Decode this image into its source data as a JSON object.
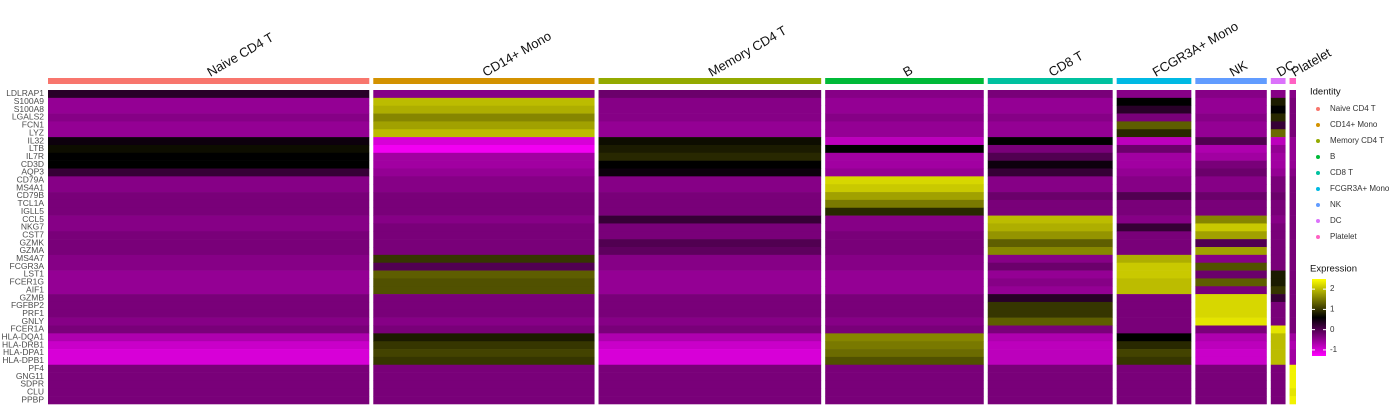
{
  "chart_data": {
    "type": "heatmap",
    "genes": [
      "LDLRAP1",
      "S100A9",
      "S100A8",
      "LGALS2",
      "FCN1",
      "LYZ",
      "IL32",
      "LTB",
      "IL7R",
      "CD3D",
      "AQP3",
      "CD79A",
      "MS4A1",
      "CD79B",
      "TCL1A",
      "IGLL5",
      "CCL5",
      "NKG7",
      "CST7",
      "GZMK",
      "GZMA",
      "MS4A7",
      "FCGR3A",
      "LST1",
      "FCER1G",
      "AIF1",
      "GZMB",
      "FGFBP2",
      "PRF1",
      "GNLY",
      "FCER1A",
      "HLA-DQA1",
      "HLA-DRB1",
      "HLA-DPA1",
      "HLA-DPB1",
      "PF4",
      "GNG11",
      "SDPR",
      "CLU",
      "PPBP"
    ],
    "clusters": [
      {
        "name": "Naive CD4 T",
        "color": "#F8766D",
        "cells": 697
      },
      {
        "name": "CD14+ Mono",
        "color": "#D39200",
        "cells": 480
      },
      {
        "name": "Memory CD4 T",
        "color": "#93AA00",
        "cells": 483
      },
      {
        "name": "B",
        "color": "#00BA38",
        "cells": 344
      },
      {
        "name": "CD8 T",
        "color": "#00C19F",
        "cells": 271
      },
      {
        "name": "FCGR3A+ Mono",
        "color": "#00B9E3",
        "cells": 162
      },
      {
        "name": "NK",
        "color": "#619CFF",
        "cells": 155
      },
      {
        "name": "DC",
        "color": "#DB72FB",
        "cells": 32
      },
      {
        "name": "Platelet",
        "color": "#FF61C3",
        "cells": 14
      }
    ],
    "values": [
      [
        0.3,
        -0.4,
        -0.2,
        -0.4,
        -0.3,
        -0.4,
        -0.4,
        -0.4,
        -0.4
      ],
      [
        -0.5,
        2.0,
        -0.4,
        -0.5,
        -0.5,
        0.6,
        -0.5,
        0.8,
        -0.3
      ],
      [
        -0.5,
        1.9,
        -0.4,
        -0.5,
        -0.5,
        0.3,
        -0.5,
        0.6,
        -0.3
      ],
      [
        -0.4,
        1.6,
        -0.4,
        -0.4,
        -0.4,
        -0.3,
        -0.4,
        0.9,
        -0.3
      ],
      [
        -0.5,
        1.8,
        -0.5,
        -0.5,
        -0.5,
        1.3,
        -0.5,
        0.2,
        -0.3
      ],
      [
        -0.5,
        2.0,
        -0.5,
        -0.5,
        -0.5,
        0.9,
        -0.5,
        1.4,
        -0.3
      ],
      [
        0.5,
        -1.0,
        0.7,
        -0.8,
        0.6,
        -0.8,
        0.0,
        -0.8,
        -0.5
      ],
      [
        0.7,
        -1.2,
        0.8,
        0.6,
        -0.3,
        -0.2,
        -0.7,
        -0.5,
        -0.5
      ],
      [
        0.6,
        -0.6,
        0.9,
        -0.6,
        0.0,
        -0.6,
        -0.6,
        -0.6,
        -0.5
      ],
      [
        0.6,
        -0.6,
        0.6,
        -0.6,
        0.5,
        -0.6,
        -0.3,
        -0.6,
        -0.5
      ],
      [
        0.2,
        -0.5,
        0.5,
        -0.5,
        0.2,
        -0.5,
        -0.2,
        -0.5,
        -0.4
      ],
      [
        -0.4,
        -0.4,
        -0.4,
        2.2,
        -0.4,
        -0.4,
        -0.4,
        -0.3,
        -0.3
      ],
      [
        -0.4,
        -0.4,
        -0.4,
        2.1,
        -0.4,
        -0.4,
        -0.4,
        -0.3,
        -0.3
      ],
      [
        -0.3,
        -0.3,
        -0.3,
        1.8,
        -0.2,
        0.0,
        -0.2,
        -0.2,
        -0.3
      ],
      [
        -0.3,
        -0.3,
        -0.3,
        1.5,
        -0.3,
        -0.3,
        -0.3,
        -0.3,
        -0.3
      ],
      [
        -0.3,
        -0.3,
        -0.3,
        0.9,
        -0.3,
        -0.3,
        -0.3,
        -0.3,
        -0.3
      ],
      [
        -0.4,
        -0.4,
        0.2,
        -0.4,
        2.0,
        -0.4,
        1.6,
        -0.4,
        -0.3
      ],
      [
        -0.4,
        -0.3,
        -0.3,
        -0.4,
        1.9,
        0.2,
        2.1,
        -0.3,
        -0.3
      ],
      [
        -0.3,
        -0.3,
        -0.3,
        -0.3,
        1.7,
        -0.3,
        1.8,
        -0.3,
        -0.3
      ],
      [
        -0.3,
        -0.3,
        0.0,
        -0.3,
        1.3,
        -0.3,
        0.0,
        -0.3,
        -0.3
      ],
      [
        -0.3,
        -0.3,
        -0.1,
        -0.3,
        1.6,
        -0.3,
        1.8,
        -0.3,
        -0.3
      ],
      [
        -0.4,
        1.0,
        -0.4,
        -0.4,
        -0.4,
        1.9,
        -0.4,
        -0.3,
        -0.3
      ],
      [
        -0.4,
        0.0,
        -0.4,
        -0.4,
        -0.2,
        2.1,
        1.2,
        -0.3,
        -0.3
      ],
      [
        -0.5,
        1.3,
        -0.5,
        -0.5,
        -0.5,
        2.1,
        -0.2,
        0.8,
        -0.3
      ],
      [
        -0.5,
        1.2,
        -0.5,
        -0.5,
        -0.4,
        2.0,
        1.3,
        0.8,
        -0.3
      ],
      [
        -0.5,
        1.2,
        -0.5,
        -0.5,
        -0.5,
        2.0,
        -0.3,
        1.0,
        -0.3
      ],
      [
        -0.3,
        -0.3,
        -0.3,
        -0.3,
        0.3,
        -0.3,
        2.2,
        0.2,
        -0.3
      ],
      [
        -0.3,
        -0.3,
        -0.3,
        -0.3,
        1.0,
        -0.3,
        2.2,
        -0.3,
        -0.3
      ],
      [
        -0.3,
        -0.3,
        -0.3,
        -0.3,
        1.0,
        -0.3,
        2.2,
        -0.3,
        -0.3
      ],
      [
        -0.4,
        -0.4,
        -0.4,
        -0.4,
        1.3,
        -0.3,
        2.3,
        -0.3,
        -0.3
      ],
      [
        -0.3,
        -0.3,
        -0.3,
        -0.3,
        -0.3,
        -0.3,
        -0.3,
        2.3,
        -0.3
      ],
      [
        -0.7,
        0.8,
        -0.7,
        1.6,
        -0.7,
        0.6,
        -0.7,
        2.0,
        -0.6
      ],
      [
        -0.9,
        1.0,
        -0.9,
        1.5,
        -0.8,
        0.9,
        -0.8,
        2.0,
        -0.7
      ],
      [
        -1.0,
        1.1,
        -1.0,
        1.4,
        -0.8,
        1.1,
        -0.9,
        2.0,
        -0.6
      ],
      [
        -1.0,
        1.0,
        -1.0,
        1.2,
        -0.8,
        1.0,
        -0.9,
        2.0,
        -0.6
      ],
      [
        -0.3,
        -0.3,
        -0.3,
        -0.3,
        -0.3,
        -0.3,
        -0.3,
        -0.3,
        2.4
      ],
      [
        -0.3,
        -0.3,
        -0.3,
        -0.3,
        -0.3,
        -0.3,
        -0.3,
        -0.3,
        2.4
      ],
      [
        -0.3,
        -0.3,
        -0.3,
        -0.3,
        -0.3,
        -0.3,
        -0.3,
        -0.3,
        2.4
      ],
      [
        -0.3,
        -0.3,
        -0.3,
        -0.3,
        -0.3,
        -0.3,
        -0.3,
        -0.3,
        2.3
      ],
      [
        -0.3,
        -0.3,
        -0.3,
        -0.3,
        -0.3,
        -0.3,
        -0.3,
        -0.3,
        2.4
      ]
    ],
    "colors": [
      "#FF00FF",
      "#000000",
      "#FFFF00"
    ],
    "colorlim": [
      -1.3,
      2.5
    ],
    "colorticks": [
      2,
      1,
      0,
      -1
    ],
    "legend_title": "Identity",
    "colorbar_title": "Expression"
  }
}
